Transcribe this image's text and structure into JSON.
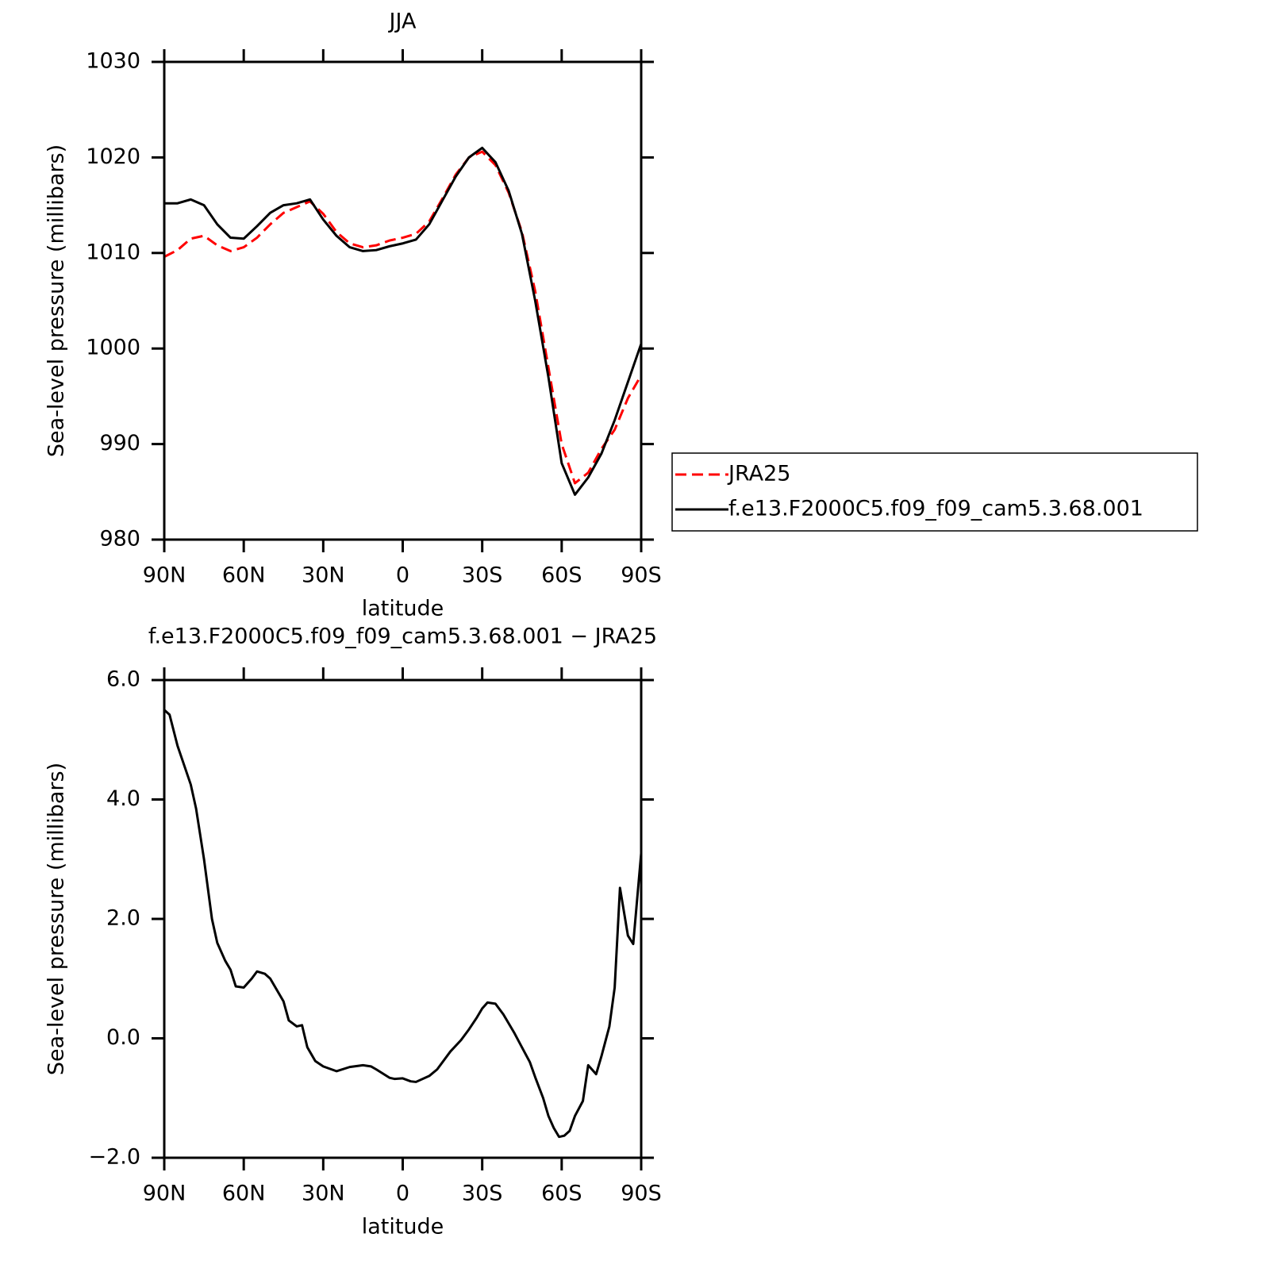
{
  "chart_data": [
    {
      "type": "line",
      "title": "JJA",
      "xlabel": "latitude",
      "ylabel": "Sea-level pressure (millibars)",
      "x": [
        90,
        85,
        80,
        75,
        70,
        65,
        60,
        55,
        50,
        45,
        40,
        35,
        30,
        25,
        20,
        15,
        10,
        5,
        0,
        -5,
        -10,
        -15,
        -20,
        -25,
        -30,
        -35,
        -40,
        -45,
        -50,
        -55,
        -60,
        -65,
        -70,
        -75,
        -80,
        -85,
        -90
      ],
      "series": [
        {
          "name": "JRA25",
          "color": "#ff0000",
          "style": "dashed",
          "values": [
            1009.6,
            1010.3,
            1011.5,
            1011.8,
            1010.8,
            1010.2,
            1010.6,
            1011.6,
            1013.0,
            1014.2,
            1014.8,
            1015.4,
            1014.1,
            1012.2,
            1011.0,
            1010.6,
            1010.8,
            1011.3,
            1011.6,
            1012.0,
            1013.3,
            1015.7,
            1018.2,
            1020.0,
            1020.6,
            1019.2,
            1016.3,
            1012.2,
            1006.0,
            998.0,
            990.0,
            985.9,
            987.0,
            989.5,
            991.5,
            994.8,
            997.2
          ]
        },
        {
          "name": "f.e13.F2000C5.f09_f09_cam5.3.68.001",
          "color": "#000000",
          "style": "solid",
          "values": [
            1015.2,
            1015.2,
            1015.6,
            1015.0,
            1013.0,
            1011.6,
            1011.5,
            1012.8,
            1014.2,
            1015.0,
            1015.2,
            1015.6,
            1013.5,
            1011.8,
            1010.6,
            1010.2,
            1010.3,
            1010.7,
            1011.0,
            1011.4,
            1013.0,
            1015.5,
            1018.0,
            1020.0,
            1021.0,
            1019.5,
            1016.5,
            1012.0,
            1005.0,
            997.0,
            988.0,
            984.7,
            986.5,
            989.0,
            992.5,
            996.5,
            1000.5
          ]
        }
      ],
      "xlim": [
        90,
        -90
      ],
      "xticks": [
        {
          "value": 90,
          "label": "90N"
        },
        {
          "value": 60,
          "label": "60N"
        },
        {
          "value": 30,
          "label": "30N"
        },
        0,
        {
          "value": -30,
          "label": "30S"
        },
        {
          "value": -60,
          "label": "60S"
        },
        {
          "value": -90,
          "label": "90S"
        }
      ],
      "ylim": [
        980,
        1030
      ],
      "yticks": [
        980,
        990,
        1000,
        1010,
        1020,
        1030
      ],
      "grid": false,
      "legend": "right"
    },
    {
      "type": "line",
      "title": "f.e13.F2000C5.f09_f09_cam5.3.68.001 − JRA25",
      "xlabel": "latitude",
      "ylabel": "Sea-level pressure (millibars)",
      "x": [
        90,
        88,
        85,
        80,
        78,
        75,
        72,
        70,
        67,
        65,
        63,
        60,
        57,
        55,
        52,
        50,
        45,
        43,
        40,
        38,
        36,
        33,
        30,
        25,
        20,
        15,
        12,
        10,
        5,
        3,
        0,
        -3,
        -5,
        -10,
        -13,
        -18,
        -22,
        -25,
        -28,
        -30,
        -32,
        -35,
        -38,
        -42,
        -45,
        -48,
        -50,
        -53,
        -55,
        -57,
        -59,
        -61,
        -63,
        -65,
        -68,
        -70,
        -73,
        -75,
        -78,
        -80,
        -82,
        -85,
        -87,
        -90
      ],
      "series": [
        {
          "color": "#000000",
          "style": "solid",
          "values": [
            5.5,
            5.42,
            4.9,
            4.25,
            3.85,
            3.0,
            2.0,
            1.6,
            1.3,
            1.15,
            0.87,
            0.85,
            1.0,
            1.12,
            1.08,
            1.0,
            0.62,
            0.3,
            0.2,
            0.22,
            -0.15,
            -0.38,
            -0.47,
            -0.55,
            -0.48,
            -0.45,
            -0.47,
            -0.52,
            -0.66,
            -0.68,
            -0.67,
            -0.72,
            -0.73,
            -0.63,
            -0.52,
            -0.22,
            -0.03,
            0.15,
            0.35,
            0.5,
            0.6,
            0.58,
            0.4,
            0.1,
            -0.15,
            -0.4,
            -0.65,
            -1.0,
            -1.3,
            -1.5,
            -1.65,
            -1.63,
            -1.55,
            -1.3,
            -1.05,
            -0.45,
            -0.6,
            -0.3,
            0.2,
            0.85,
            2.52,
            1.72,
            1.58,
            3.1
          ]
        }
      ],
      "xlim": [
        90,
        -90
      ],
      "xticks": [
        {
          "value": 90,
          "label": "90N"
        },
        {
          "value": 60,
          "label": "60N"
        },
        {
          "value": 30,
          "label": "30N"
        },
        0,
        {
          "value": -30,
          "label": "30S"
        },
        {
          "value": -60,
          "label": "60S"
        },
        {
          "value": -90,
          "label": "90S"
        }
      ],
      "ylim": [
        -2,
        6
      ],
      "yticks": [
        {
          "value": -2,
          "label": "−2.0"
        },
        {
          "value": 0,
          "label": "0.0"
        },
        {
          "value": 2,
          "label": "2.0"
        },
        {
          "value": 4,
          "label": "4.0"
        },
        {
          "value": 6,
          "label": "6.0"
        }
      ],
      "grid": false
    }
  ]
}
